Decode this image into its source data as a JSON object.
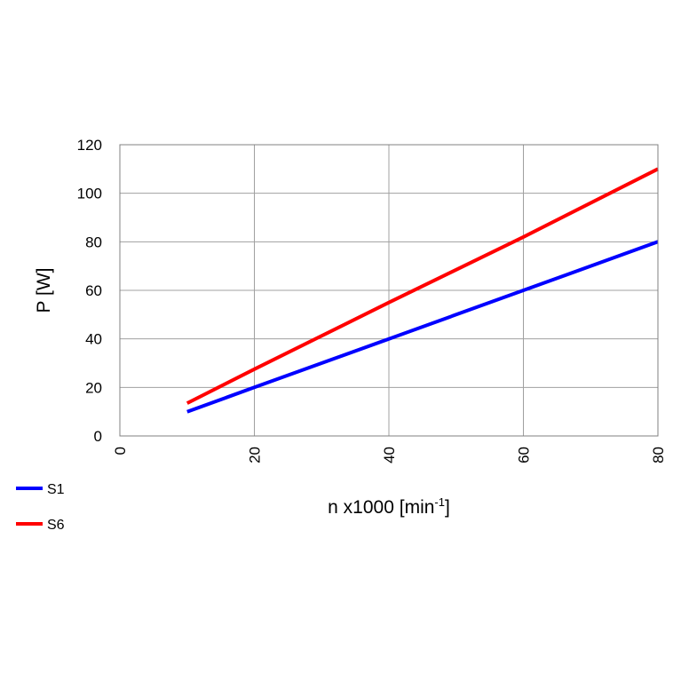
{
  "chart_data": {
    "type": "line",
    "xlabel": "n x1000  [min",
    "xlabel_sup": "-1",
    "xlabel_close": "]",
    "ylabel": "P [W]",
    "xlim": [
      0,
      80
    ],
    "ylim": [
      0,
      120
    ],
    "x_ticks": [
      "0",
      "20",
      "40",
      "60",
      "80"
    ],
    "y_ticks": [
      "0",
      "20",
      "40",
      "60",
      "80",
      "100",
      "120"
    ],
    "grid": true,
    "legend_position": "bottom-left",
    "series": [
      {
        "name": "S1",
        "color": "#0000ff",
        "x": [
          10,
          20,
          40,
          60,
          80
        ],
        "y": [
          10,
          20,
          40,
          60,
          80
        ]
      },
      {
        "name": "S6",
        "color": "#ff0000",
        "x": [
          10,
          20,
          40,
          60,
          80
        ],
        "y": [
          13.5,
          27.5,
          55,
          82,
          110
        ]
      }
    ]
  }
}
